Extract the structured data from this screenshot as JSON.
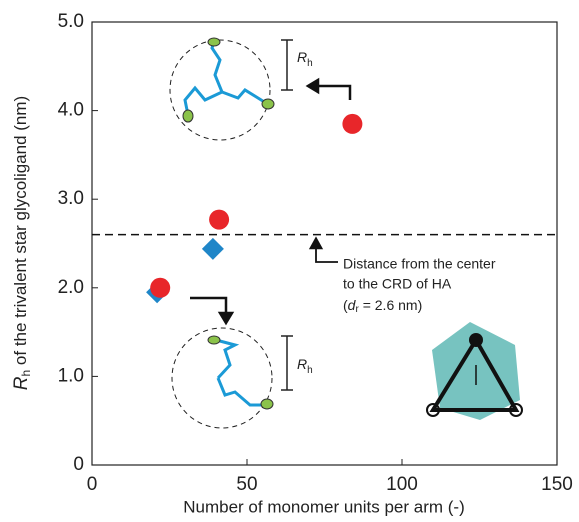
{
  "chart_data": {
    "type": "scatter",
    "x_label": "Number of monomer units per arm (-)",
    "y_label_symbol": "R",
    "y_label_subscript": "h",
    "y_label_rest": " of the trivalent star glycoligand (nm)",
    "xlim": [
      0,
      150
    ],
    "xticks": [
      0,
      50,
      100,
      150
    ],
    "ylim": [
      0,
      5
    ],
    "yticks": [
      0,
      {
        "value": 1,
        "label": "1.0"
      },
      {
        "value": 2,
        "label": "2.0"
      },
      {
        "value": 3,
        "label": "3.0"
      },
      {
        "value": 4,
        "label": "4.0"
      },
      {
        "value": 5,
        "label": "5.0"
      }
    ],
    "reference_line": 2.6,
    "series": [
      {
        "color": "#e8262a",
        "marker": "circle",
        "x": [
          22,
          41,
          84
        ],
        "values": [
          2.0,
          2.77,
          3.85
        ]
      },
      {
        "color": "#1f86c8",
        "marker": "diamond",
        "x": [
          21,
          39
        ],
        "values": [
          1.95,
          2.44
        ]
      }
    ],
    "annotation_lines": [
      "Distance from the center",
      "to the CRD of HA"
    ],
    "annotation_d": "d",
    "annotation_r": "r",
    "annotation_value": " = 2.6 nm)",
    "annotation_open": "(",
    "rh_symbol": "R",
    "rh_subscript": "h"
  }
}
